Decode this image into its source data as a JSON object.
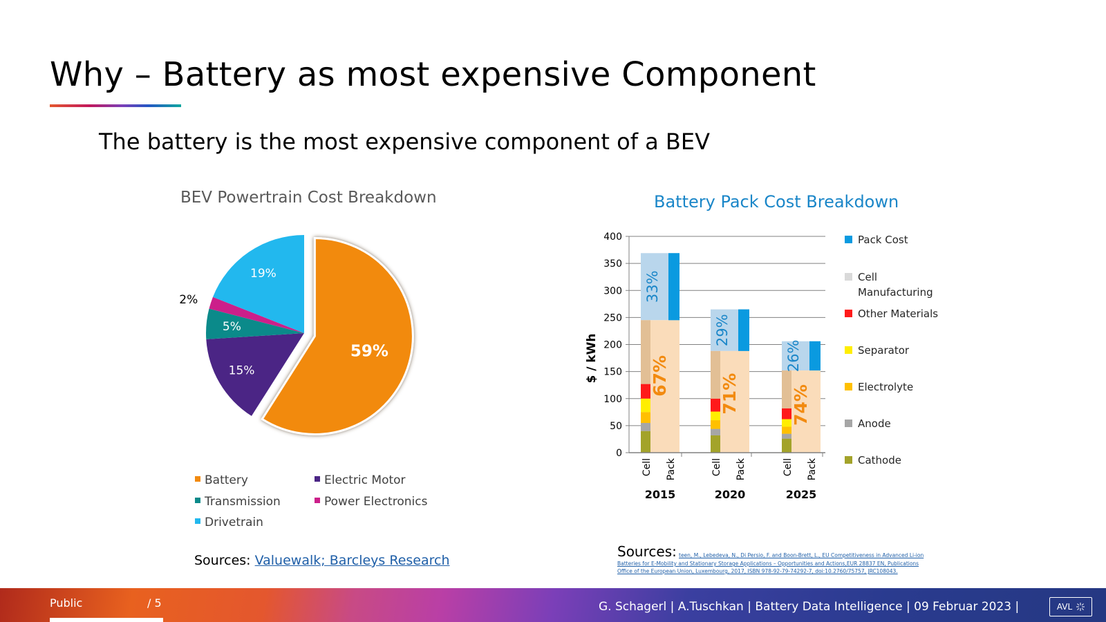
{
  "slide": {
    "title": "Why – Battery as most expensive Component",
    "subtitle": "The battery is the most expensive component of a BEV"
  },
  "pie": {
    "title": "BEV Powertrain Cost Breakdown",
    "sources_prefix": "Sources: ",
    "sources_link": "Valuewalk; Barcleys Research"
  },
  "bar": {
    "title": "Battery Pack Cost Breakdown",
    "sources_prefix": "Sources: ",
    "sources_fine_1": "teen, M., Lebedeva, N., Di Persio, F. and Boon-Brett, L., EU Competitiveness in Advanced Li-ion",
    "sources_fine_2": "Batteries for E-Mobility and Stationary Storage Applications – Opportunities and Actions,EUR 28837 EN, Publications",
    "sources_fine_3": "Office of the European Union, Luxembourg, 2017, ISBN 978-92-79-74292-7, doi:10.2760/75757, JRC108043."
  },
  "footer": {
    "classification": "Public",
    "page": "/ 5",
    "info": "G. Schagerl | A.Tuschkan | Battery Data Intelligence | 09 Februar 2023 |",
    "logo": "AVL"
  },
  "colors": {
    "battery": "#f28a0f",
    "motor": "#4b2585",
    "transmission": "#0b8a8a",
    "power_electronics": "#cc1f8a",
    "drivetrain": "#22b8ee",
    "pack_cost": "#0a9ae0",
    "cell_manufacturing": "#d9d9d9",
    "other_materials": "#ff1a1a",
    "separator": "#ffee00",
    "electrolyte": "#ffc000",
    "anode": "#a6a6a6",
    "cathode": "#a3a32a"
  },
  "chart_data": [
    {
      "type": "pie",
      "title": "BEV Powertrain Cost Breakdown",
      "categories": [
        "Battery",
        "Electric Motor",
        "Transmission",
        "Power Electronics",
        "Drivetrain"
      ],
      "values": [
        59,
        15,
        5,
        2,
        19
      ],
      "labels": [
        "59%",
        "15%",
        "5%",
        "2%",
        "19%"
      ],
      "exploded": "Battery",
      "legend_position": "bottom"
    },
    {
      "type": "bar",
      "title": "Battery Pack Cost Breakdown",
      "ylabel": "$ / kWh",
      "ylim": [
        0,
        400
      ],
      "yticks": [
        0,
        50,
        100,
        150,
        200,
        250,
        300,
        350,
        400
      ],
      "groups": [
        "2015",
        "2020",
        "2025"
      ],
      "bar_labels": [
        "Cell",
        "Pack"
      ],
      "pack_total": [
        369,
        265,
        206
      ],
      "cell_total": [
        245,
        188,
        152
      ],
      "pack_share_labels": [
        "33%",
        "29%",
        "26%"
      ],
      "cell_share_labels": [
        "67%",
        "71%",
        "74%"
      ],
      "cell_components": {
        "Cathode": [
          40,
          32,
          26
        ],
        "Anode": [
          15,
          12,
          9
        ],
        "Electrolyte": [
          20,
          16,
          13
        ],
        "Separator": [
          25,
          16,
          14
        ],
        "Other Materials": [
          27,
          24,
          20
        ],
        "Cell Manufacturing": [
          118,
          88,
          70
        ]
      },
      "legend": [
        "Pack Cost",
        "Cell Manufacturing",
        "Other Materials",
        "Separator",
        "Electrolyte",
        "Anode",
        "Cathode"
      ],
      "legend_position": "right",
      "grid": true
    }
  ]
}
